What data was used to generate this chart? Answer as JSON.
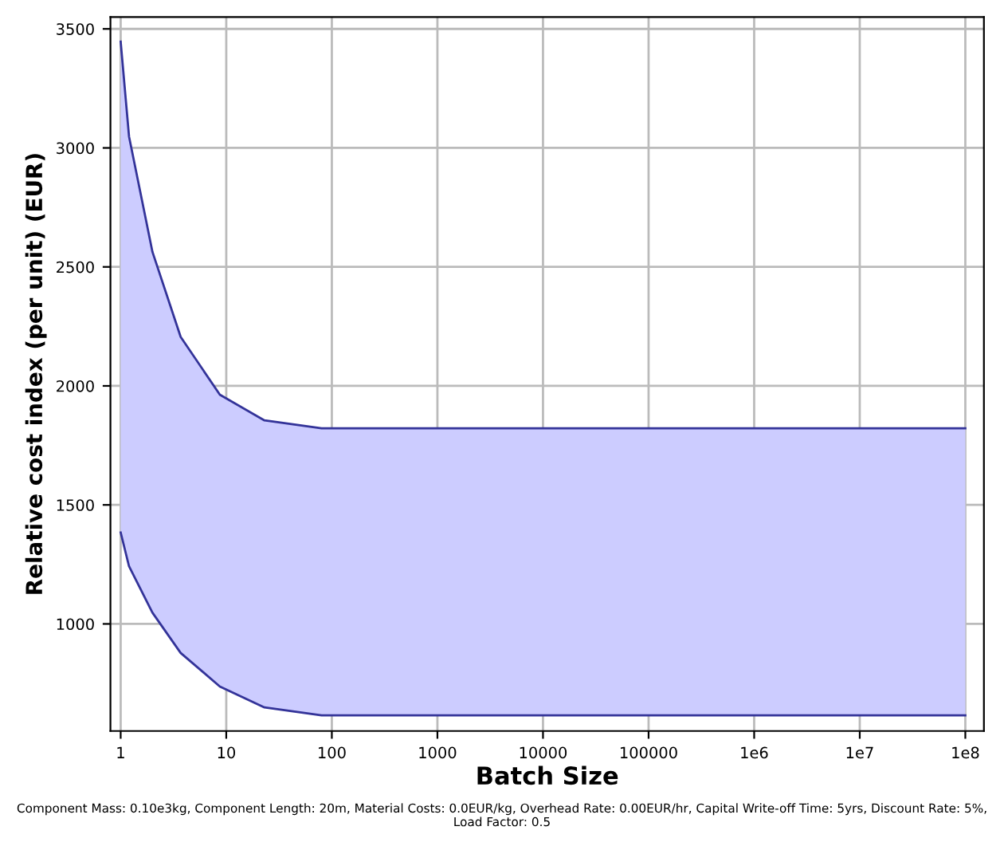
{
  "chart_data": {
    "type": "area",
    "xlabel": "Batch Size",
    "ylabel": "Relative cost index (per unit) (EUR)",
    "annotations": [
      "Component Mass: 0.10e3kg, Component Length: 20m, Material Costs: 0.0EUR/kg, Overhead Rate: 0.00EUR/hr, Capital Write-off Time: 5yrs, Discount Rate: 5%, Load Factor: 0.5"
    ],
    "x": [
      1,
      1.2,
      2,
      3.7,
      8.7,
      23,
      80,
      100000000
    ],
    "series": [
      {
        "type": "line",
        "color": "#333399",
        "values": [
          1384,
          1242,
          1047,
          878,
          737,
          649,
          616,
          616
        ]
      },
      {
        "color": "#ccccff",
        "values": [
          3446,
          3048,
          2563,
          2206,
          1963,
          1855,
          1822,
          1822
        ]
      }
    ],
    "log": "x",
    "xlim": [
      0.8,
      150000000
    ],
    "ylim": [
      550,
      3550
    ],
    "xticks": [
      1,
      10,
      100,
      1000,
      10000,
      100000,
      {
        "value": 1000000,
        "label": "1e6"
      },
      {
        "value": 10000000,
        "label": "1e7"
      },
      {
        "value": 100000000,
        "label": "1e8"
      }
    ],
    "yticks": [
      1000,
      1500,
      2000,
      2500,
      3000,
      3500
    ],
    "grid": true
  }
}
